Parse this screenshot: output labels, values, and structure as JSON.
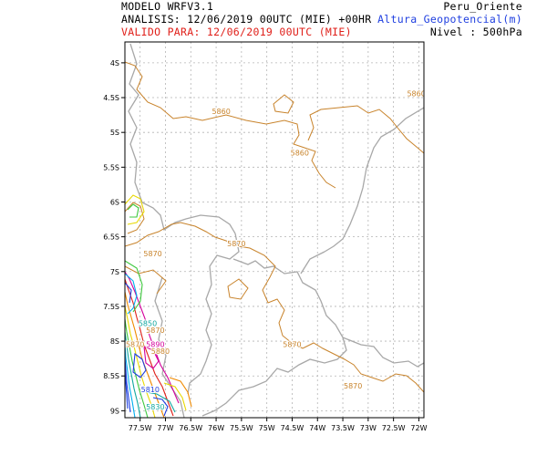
{
  "header": {
    "model": "MODELO WRFV3.1",
    "analysis": "ANALISIS: 12/06/2019 00UTC (MIE) +00HR",
    "valid": "VALIDO PARA: 12/06/2019 00UTC (MIE)",
    "region": "Peru_Oriente",
    "variable": "Altura_Geopotencial(m)",
    "level": "Nivel : 500hPa"
  },
  "map": {
    "lat_ticks": [
      "4S",
      "4.5S",
      "5S",
      "5.5S",
      "6S",
      "6.5S",
      "7S",
      "7.5S",
      "8S",
      "8.5S",
      "9S"
    ],
    "lon_ticks": [
      "77.5W",
      "77W",
      "76.5W",
      "76W",
      "75.5W",
      "75W",
      "74.5W",
      "74W",
      "73.5W",
      "73W",
      "72.5W",
      "72W"
    ],
    "lat_range": [
      -9.1,
      -3.7
    ],
    "lon_range": [
      -77.8,
      -71.9
    ],
    "grid": true
  },
  "contours": {
    "labels": [
      {
        "text": "5860",
        "lat": -4.7,
        "lon": -75.9,
        "color": "#c8832b"
      },
      {
        "text": "5860",
        "lat": -4.45,
        "lon": -72.05,
        "color": "#c8832b"
      },
      {
        "text": "5860",
        "lat": -5.3,
        "lon": -74.35,
        "color": "#c8832b"
      },
      {
        "text": "5870",
        "lat": -6.75,
        "lon": -77.25,
        "color": "#c8832b"
      },
      {
        "text": "5870",
        "lat": -6.6,
        "lon": -75.6,
        "color": "#c8832b"
      },
      {
        "text": "5870",
        "lat": -8.05,
        "lon": -74.5,
        "color": "#c8832b"
      },
      {
        "text": "5870",
        "lat": -8.65,
        "lon": -73.3,
        "color": "#c8832b"
      },
      {
        "text": "5870",
        "lat": -7.85,
        "lon": -77.2,
        "color": "#c8832b"
      },
      {
        "text": "5870",
        "lat": -8.05,
        "lon": -77.6,
        "color": "#c8832b"
      },
      {
        "text": "5880",
        "lat": -8.15,
        "lon": -77.1,
        "color": "#c8832b"
      },
      {
        "text": "5890",
        "lat": -8.05,
        "lon": -77.2,
        "color": "#d4009c"
      },
      {
        "text": "5810",
        "lat": -8.7,
        "lon": -77.3,
        "color": "#1f3fe0"
      },
      {
        "text": "5830",
        "lat": -8.95,
        "lon": -77.2,
        "color": "#12a8a0"
      },
      {
        "text": "5850",
        "lat": -7.75,
        "lon": -77.35,
        "color": "#12a8a0"
      }
    ]
  }
}
